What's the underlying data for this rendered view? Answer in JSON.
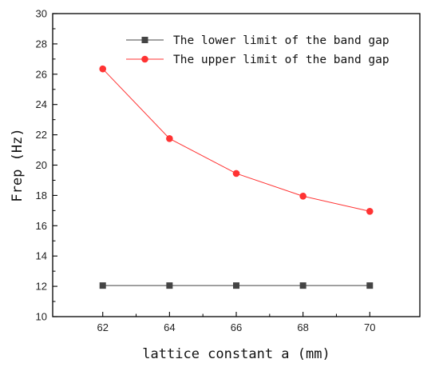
{
  "chart_data": {
    "type": "line",
    "title": "",
    "xlabel": "lattice constant a (mm)",
    "ylabel": "Frep (Hz)",
    "x": [
      62,
      64,
      66,
      68,
      70
    ],
    "xticks": [
      62,
      64,
      66,
      68,
      70
    ],
    "xlim": [
      60.5,
      71.5
    ],
    "ylim": [
      10,
      30
    ],
    "yticks": [
      10,
      12,
      14,
      16,
      18,
      20,
      22,
      24,
      26,
      28,
      30
    ],
    "grid": false,
    "legend_position": "top-right",
    "series": [
      {
        "name": "The lower limit of the band gap",
        "values": [
          12.05,
          12.05,
          12.05,
          12.05,
          12.05
        ],
        "marker": "square",
        "color": "#444444"
      },
      {
        "name": "The upper limit of the band gap",
        "values": [
          26.35,
          21.75,
          19.45,
          17.95,
          16.95
        ],
        "marker": "circle",
        "color": "#ff3333"
      }
    ]
  }
}
